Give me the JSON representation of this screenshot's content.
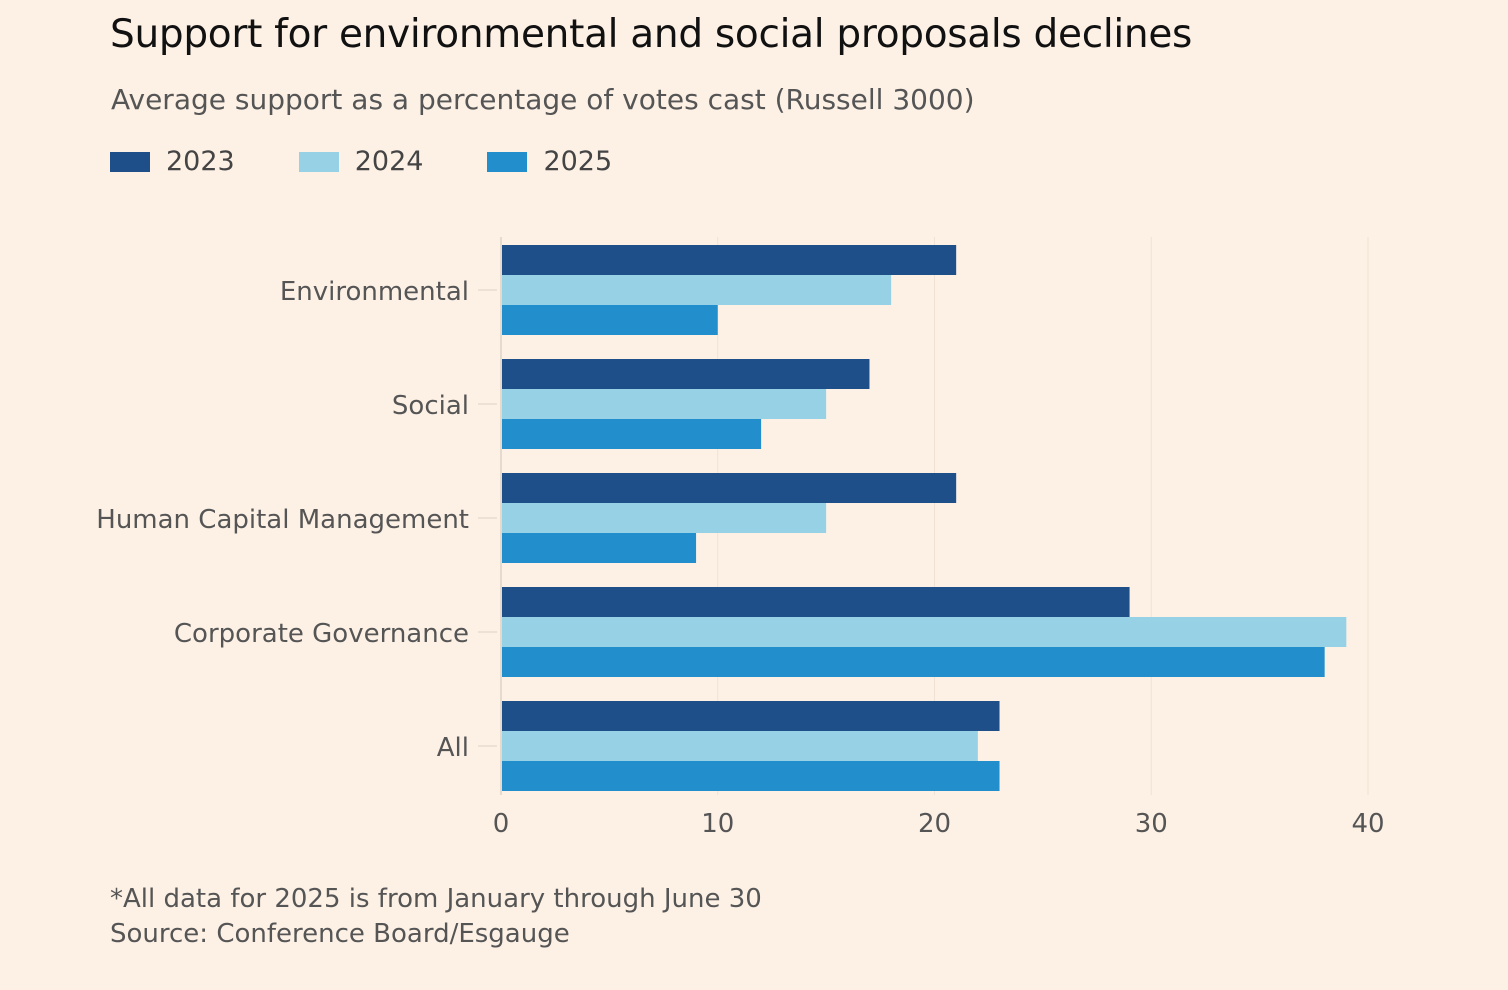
{
  "chart_data": {
    "type": "bar",
    "orientation": "horizontal",
    "title": "Support for environmental and social proposals declines",
    "subtitle": "Average support as a percentage of votes cast (Russell 3000)",
    "categories": [
      "Environmental",
      "Social",
      "Human Capital Management",
      "Corporate Governance",
      "All"
    ],
    "series": [
      {
        "name": "2023",
        "color": "#1f4f88",
        "values": [
          21,
          17,
          21,
          29,
          23
        ]
      },
      {
        "name": "2024",
        "color": "#96d1e6",
        "values": [
          18,
          15,
          15,
          39,
          22
        ]
      },
      {
        "name": "2025",
        "color": "#228fcc",
        "values": [
          10,
          12,
          9,
          38,
          23
        ]
      }
    ],
    "xlim": [
      0,
      40
    ],
    "xticks": [
      "0",
      "10",
      "20",
      "30",
      "40"
    ],
    "grid": true,
    "legend": "top-left",
    "xlabel": "",
    "ylabel": ""
  },
  "footnote": "*All data for 2025 is from January through June 30",
  "source": "Source: Conference Board/Esgauge"
}
